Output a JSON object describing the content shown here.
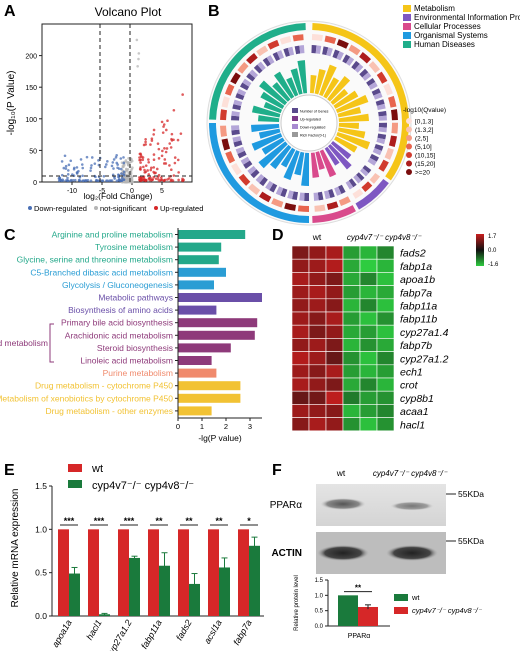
{
  "panels": {
    "A": {
      "letter": "A",
      "title": "Volcano Plot",
      "xlabel": "log₂(Fold Change)",
      "ylabel": "-log₁₀(P Value)",
      "legend": [
        "Down-regulated",
        "not-significant",
        "Up-regulated"
      ],
      "colors": {
        "down": "#4a6fb5",
        "ns": "#b5b5b5",
        "up": "#d62728"
      }
    },
    "B": {
      "letter": "B",
      "categories": [
        {
          "name": "Metabolism",
          "color": "#f5c518"
        },
        {
          "name": "Environmental Information Processing",
          "color": "#7e57c2"
        },
        {
          "name": "Cellular Processes",
          "color": "#d94a8c"
        },
        {
          "name": "Organismal Systems",
          "color": "#1f9ae0"
        },
        {
          "name": "Human Diseases",
          "color": "#1fae8a"
        }
      ],
      "qvalue_legend": {
        "title": "-log10(Qvalue)",
        "bins": [
          "[0,1.3]",
          "(1.3,2]",
          "(2,5]",
          "(5,10]",
          "(10,15]",
          "(15,20]",
          ">=20"
        ],
        "colors": [
          "#fde0d9",
          "#f9c2b2",
          "#f49a83",
          "#e8654e",
          "#d13b2e",
          "#ad1d1d",
          "#7a0d0d"
        ]
      },
      "inner_legend": [
        "Number of Genes",
        "Up-regulated",
        "Down-regulated",
        "Rich Factor(0-1)"
      ]
    },
    "C": {
      "letter": "C",
      "xlabel": "-lg(P value)",
      "group_label": "Lipid metabolism"
    },
    "D": {
      "letter": "D",
      "col_labels": [
        "wt",
        "cyp4v7⁻/⁻ cyp4v8⁻/⁻"
      ],
      "scale_labels": [
        "1.7",
        "0.0",
        "-1.6"
      ],
      "genes": [
        "fads2",
        "fabp1a",
        "apoa1b",
        "fabp7a",
        "fabp11a",
        "fabp11b",
        "cyp27a1.4",
        "fabp7b",
        "cyp27a1.2",
        "ech1",
        "crot",
        "cyp8b1",
        "acaa1",
        "hacl1"
      ]
    },
    "E": {
      "letter": "E",
      "ylabel": "Relative mRNA expression",
      "legend": [
        "wt",
        "cyp4v7⁻/⁻ cyp4v8⁻/⁻"
      ],
      "colors": {
        "wt": "#d62728",
        "ko": "#1a7a3c"
      }
    },
    "F": {
      "letter": "F",
      "lane_labels": [
        "wt",
        "cyp4v7⁻/⁻ cyp4v8⁻/⁻"
      ],
      "bands": [
        {
          "name": "PPARα",
          "size": "55KDa"
        },
        {
          "name": "ACTIN",
          "size": "55KDa"
        }
      ],
      "ylabel": "Relative protein level",
      "xlabel": "PPARα",
      "sig": "**",
      "legend": [
        "wt",
        "cyp4v7⁻/⁻ cyp4v8⁻/⁻"
      ]
    }
  },
  "chart_data": [
    {
      "type": "scatter",
      "panel": "A",
      "title": "Volcano Plot",
      "xlabel": "log₂(Fold Change)",
      "ylabel": "-log₁₀(P Value)",
      "xlim": [
        -15,
        10
      ],
      "ylim": [
        0,
        250
      ],
      "xticks": [
        -10,
        -5,
        0,
        5
      ],
      "yticks": [
        0,
        50,
        100,
        150,
        200
      ],
      "legend": "bottom"
    },
    {
      "type": "bar",
      "panel": "C",
      "orientation": "horizontal",
      "xlabel": "-lg(P value)",
      "xlim": [
        0,
        3.5
      ],
      "xticks": [
        0,
        1,
        2,
        3
      ],
      "categories": [
        "Arginine and proline metabolism",
        "Tyrosine metabolism",
        "Glycine, serine and threonine metabolism",
        "C5-Branched dibasic acid metabolism",
        "Glycolysis / Gluconeogenesis",
        "Metabolic pathways",
        "Biosynthesis of amino acids",
        "Primary bile acid biosynthesis",
        "Arachidonic acid metabolism",
        "Steroid biosynthesis",
        "Linoleic acid metabolism",
        "Purine metabolism",
        "Drug metabolism - cytochrome P450",
        "Metabolism of xenobiotics by cytochrome P450",
        "Drug metabolism - other enzymes"
      ],
      "values": [
        2.8,
        1.8,
        1.7,
        2.0,
        1.5,
        3.5,
        1.6,
        3.3,
        3.2,
        2.2,
        1.4,
        1.6,
        2.6,
        2.6,
        1.4
      ],
      "colors": [
        "#23a88a",
        "#23a88a",
        "#23a88a",
        "#2a9dd4",
        "#2a9dd4",
        "#6a4fa8",
        "#6a4fa8",
        "#8e3a7a",
        "#8e3a7a",
        "#8e3a7a",
        "#8e3a7a",
        "#f08a6c",
        "#f2c233",
        "#f2c233",
        "#f2c233"
      ]
    },
    {
      "type": "heatmap",
      "panel": "D",
      "rows": [
        "fads2",
        "fabp1a",
        "apoa1b",
        "fabp7a",
        "fabp11a",
        "fabp11b",
        "cyp27a1.4",
        "fabp7b",
        "cyp27a1.2",
        "ech1",
        "crot",
        "cyp8b1",
        "acaa1",
        "hacl1"
      ],
      "columns": [
        "wt",
        "wt",
        "wt",
        "ko",
        "ko",
        "ko"
      ],
      "values": [
        [
          1.0,
          1.2,
          1.4,
          -1.2,
          -1.4,
          -1.0
        ],
        [
          1.2,
          1.3,
          1.5,
          -1.3,
          -1.6,
          -1.4
        ],
        [
          1.4,
          1.2,
          1.0,
          -1.3,
          -1.0,
          -1.5
        ],
        [
          1.3,
          1.4,
          1.2,
          -1.2,
          -1.4,
          -1.3
        ],
        [
          1.2,
          1.3,
          1.1,
          -1.4,
          -1.0,
          -1.5
        ],
        [
          1.3,
          1.1,
          1.4,
          -1.2,
          -1.5,
          -1.1
        ],
        [
          1.4,
          1.0,
          1.2,
          -1.3,
          -1.2,
          -1.5
        ],
        [
          1.2,
          1.3,
          1.0,
          -1.4,
          -1.1,
          -1.3
        ],
        [
          1.5,
          1.3,
          0.8,
          -1.1,
          -1.5,
          -1.0
        ],
        [
          1.3,
          1.1,
          1.4,
          -1.2,
          -1.4,
          -1.2
        ],
        [
          1.4,
          1.2,
          1.0,
          -1.3,
          -1.0,
          -1.4
        ],
        [
          0.8,
          0.9,
          1.6,
          -0.9,
          -1.2,
          -1.1
        ],
        [
          1.3,
          1.2,
          1.1,
          -1.4,
          -1.2,
          -1.0
        ],
        [
          1.1,
          1.4,
          1.2,
          -1.1,
          -1.5,
          -1.1
        ]
      ],
      "scale": [
        -1.6,
        1.7
      ]
    },
    {
      "type": "bar",
      "panel": "E",
      "ylabel": "Relative mRNA expression",
      "ylim": [
        0,
        1.5
      ],
      "yticks": [
        0.0,
        0.5,
        1.0,
        1.5
      ],
      "categories": [
        "apoa1a",
        "hacl1",
        "cyp27a1.2",
        "fabp11a",
        "fads2",
        "acsl1a",
        "fabp7a"
      ],
      "series": [
        {
          "name": "wt",
          "values": [
            1.0,
            1.0,
            1.0,
            1.0,
            1.0,
            1.0,
            1.0
          ],
          "errors": [
            0,
            0,
            0,
            0,
            0,
            0,
            0
          ]
        },
        {
          "name": "cyp4v7⁻/⁻ cyp4v8⁻/⁻",
          "values": [
            0.49,
            0.02,
            0.67,
            0.58,
            0.37,
            0.56,
            0.81
          ],
          "errors": [
            0.07,
            0.01,
            0.02,
            0.15,
            0.12,
            0.11,
            0.1
          ]
        }
      ],
      "significance": [
        "***",
        "***",
        "***",
        "**",
        "**",
        "**",
        "*"
      ],
      "legend": "top-right"
    },
    {
      "type": "bar",
      "panel": "F",
      "ylabel": "Relative protein level",
      "ylim": [
        0,
        1.5
      ],
      "yticks": [
        0.0,
        0.5,
        1.0,
        1.5
      ],
      "categories": [
        "PPARα"
      ],
      "series": [
        {
          "name": "wt",
          "values": [
            1.0
          ],
          "errors": [
            0
          ]
        },
        {
          "name": "cyp4v7⁻/⁻ cyp4v8⁻/⁻",
          "values": [
            0.62
          ],
          "errors": [
            0.07
          ]
        }
      ],
      "significance": [
        "**"
      ],
      "legend": "right"
    }
  ]
}
